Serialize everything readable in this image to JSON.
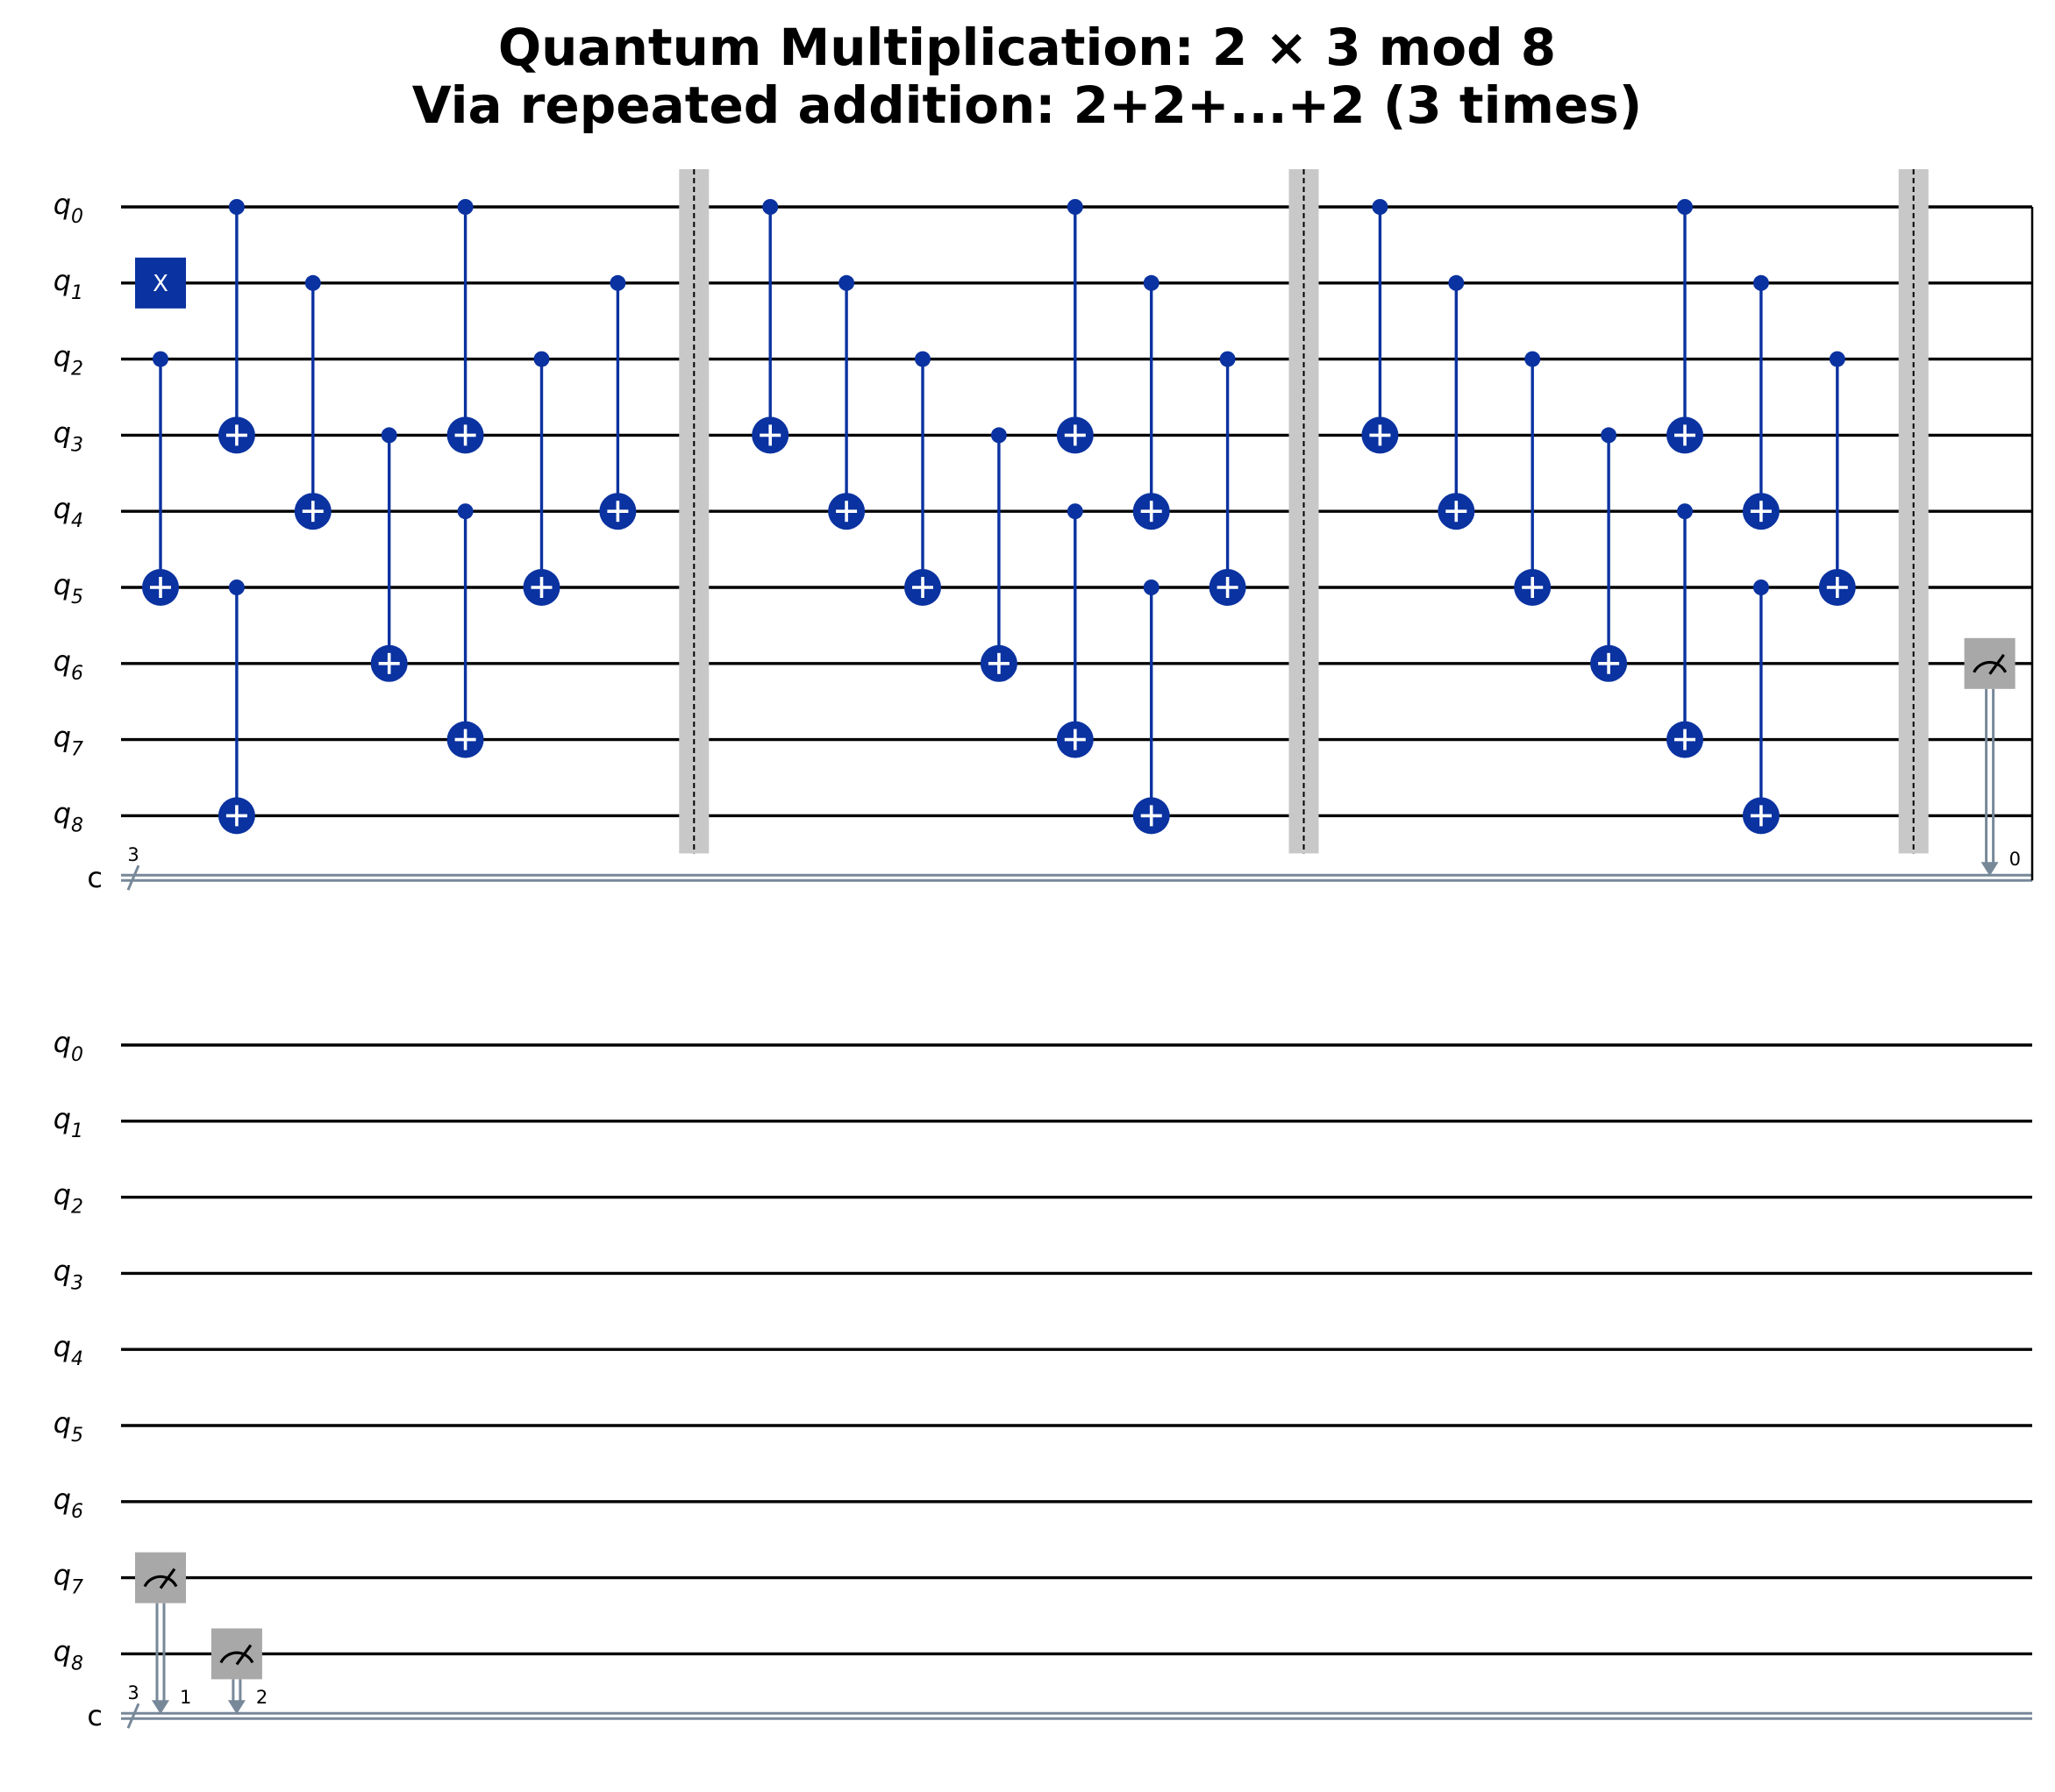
{
  "title": {
    "line1": "Quantum Multiplication: 2 × 3 mod 8",
    "line2": "Via repeated addition: 2+2+...+2 (3 times)"
  },
  "qubit_labels": [
    "q0",
    "q1",
    "q2",
    "q3",
    "q4",
    "q5",
    "q6",
    "q7",
    "q8"
  ],
  "qubit_label_base": "q",
  "qubit_label_subscripts": [
    "0",
    "1",
    "2",
    "3",
    "4",
    "5",
    "6",
    "7",
    "8"
  ],
  "classical_register": {
    "label": "c",
    "size": "3"
  },
  "x_gate_label": "X",
  "colors": {
    "gate": "#0a32a0",
    "wire": "#000000",
    "classical": "#778899",
    "barrier": "#c8c8c8",
    "measure": "#a8a8a8"
  },
  "panels": [
    {
      "gates": [
        {
          "type": "x",
          "target": 1,
          "column": 0
        },
        {
          "type": "cx",
          "control": 2,
          "target": 5,
          "column": 0
        },
        {
          "type": "cx",
          "control": 0,
          "target": 3,
          "column": 1
        },
        {
          "type": "cx",
          "control": 5,
          "target": 8,
          "column": 1
        },
        {
          "type": "cx",
          "control": 1,
          "target": 4,
          "column": 2
        },
        {
          "type": "cx",
          "control": 3,
          "target": 6,
          "column": 3
        },
        {
          "type": "cx",
          "control": 0,
          "target": 3,
          "column": 4
        },
        {
          "type": "cx",
          "control": 4,
          "target": 7,
          "column": 4
        },
        {
          "type": "cx",
          "control": 2,
          "target": 5,
          "column": 5
        },
        {
          "type": "cx",
          "control": 1,
          "target": 4,
          "column": 6
        },
        {
          "type": "barrier",
          "column": 7
        },
        {
          "type": "cx",
          "control": 0,
          "target": 3,
          "column": 8
        },
        {
          "type": "cx",
          "control": 1,
          "target": 4,
          "column": 9
        },
        {
          "type": "cx",
          "control": 2,
          "target": 5,
          "column": 10
        },
        {
          "type": "cx",
          "control": 3,
          "target": 6,
          "column": 11
        },
        {
          "type": "cx",
          "control": 0,
          "target": 3,
          "column": 12
        },
        {
          "type": "cx",
          "control": 4,
          "target": 7,
          "column": 12
        },
        {
          "type": "cx",
          "control": 1,
          "target": 4,
          "column": 13
        },
        {
          "type": "cx",
          "control": 5,
          "target": 8,
          "column": 13
        },
        {
          "type": "cx",
          "control": 2,
          "target": 5,
          "column": 14
        },
        {
          "type": "barrier",
          "column": 15
        },
        {
          "type": "cx",
          "control": 0,
          "target": 3,
          "column": 16
        },
        {
          "type": "cx",
          "control": 1,
          "target": 4,
          "column": 17
        },
        {
          "type": "cx",
          "control": 2,
          "target": 5,
          "column": 18
        },
        {
          "type": "cx",
          "control": 3,
          "target": 6,
          "column": 19
        },
        {
          "type": "cx",
          "control": 0,
          "target": 3,
          "column": 20
        },
        {
          "type": "cx",
          "control": 4,
          "target": 7,
          "column": 20
        },
        {
          "type": "cx",
          "control": 1,
          "target": 4,
          "column": 21
        },
        {
          "type": "cx",
          "control": 5,
          "target": 8,
          "column": 21
        },
        {
          "type": "cx",
          "control": 2,
          "target": 5,
          "column": 22
        },
        {
          "type": "barrier",
          "column": 23
        },
        {
          "type": "measure",
          "qubit": 6,
          "clbit": "0",
          "column": 24
        }
      ]
    },
    {
      "gates": [
        {
          "type": "measure",
          "qubit": 7,
          "clbit": "1",
          "column": 0
        },
        {
          "type": "measure",
          "qubit": 8,
          "clbit": "2",
          "column": 1
        }
      ]
    }
  ]
}
